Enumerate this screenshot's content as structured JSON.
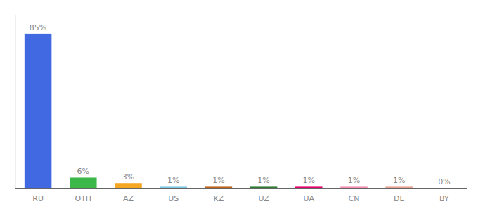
{
  "chart_data": {
    "type": "bar",
    "categories": [
      "RU",
      "OTH",
      "AZ",
      "US",
      "KZ",
      "UZ",
      "UA",
      "CN",
      "DE",
      "BY"
    ],
    "values": [
      85,
      6,
      3,
      1,
      1,
      1,
      1,
      1,
      1,
      0.2
    ],
    "value_labels": [
      "85%",
      "6%",
      "3%",
      "1%",
      "1%",
      "1%",
      "1%",
      "1%",
      "1%",
      "0%"
    ],
    "colors": [
      "#4169e1",
      "#3cb84a",
      "#f5a623",
      "#7ec8e3",
      "#c0651a",
      "#2e7d32",
      "#e8006a",
      "#f48fb1",
      "#e8a090",
      "#cccccc"
    ],
    "ylim": [
      0,
      95
    ],
    "data_labels": true,
    "grid": false,
    "tick_labels": "x"
  }
}
